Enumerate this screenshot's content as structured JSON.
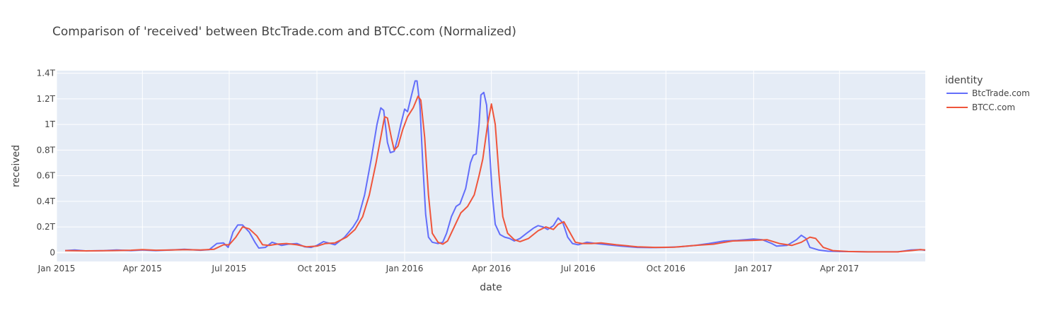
{
  "colors": {
    "plot_bg": "#E5ECF6",
    "grid": "#FFFFFF",
    "text": "#444444",
    "btctrade": "#636EFA",
    "btcc": "#EF553B"
  },
  "chart_data": {
    "type": "line",
    "title": "Comparison of 'received' between BtcTrade.com and BTCC.com (Normalized)",
    "xlabel": "date",
    "ylabel": "received",
    "xlim": [
      "2015-01-01",
      "2017-06-30"
    ],
    "ylim": [
      -70,
      1420
    ],
    "grid": true,
    "x_ticks": [
      {
        "date": "2015-01-01",
        "label": "Jan 2015"
      },
      {
        "date": "2015-04-01",
        "label": "Apr 2015"
      },
      {
        "date": "2015-07-01",
        "label": "Jul 2015"
      },
      {
        "date": "2015-10-01",
        "label": "Oct 2015"
      },
      {
        "date": "2016-01-01",
        "label": "Jan 2016"
      },
      {
        "date": "2016-04-01",
        "label": "Apr 2016"
      },
      {
        "date": "2016-07-01",
        "label": "Jul 2016"
      },
      {
        "date": "2016-10-01",
        "label": "Oct 2016"
      },
      {
        "date": "2017-01-01",
        "label": "Jan 2017"
      },
      {
        "date": "2017-04-01",
        "label": "Apr 2017"
      }
    ],
    "y_ticks": [
      {
        "value": 0,
        "label": "0"
      },
      {
        "value": 200,
        "label": "0.2T"
      },
      {
        "value": 400,
        "label": "0.4T"
      },
      {
        "value": 600,
        "label": "0.6T"
      },
      {
        "value": 800,
        "label": "0.8T"
      },
      {
        "value": 1000,
        "label": "1T"
      },
      {
        "value": 1200,
        "label": "1.2T"
      },
      {
        "value": 1400,
        "label": "1.4T"
      }
    ],
    "legend": {
      "title": "identity",
      "position": "top-right"
    },
    "series": [
      {
        "name": "BtcTrade.com",
        "color": "#636EFA",
        "points": [
          [
            "2015-01-10",
            15
          ],
          [
            "2015-01-20",
            20
          ],
          [
            "2015-02-01",
            12
          ],
          [
            "2015-02-20",
            15
          ],
          [
            "2015-03-05",
            20
          ],
          [
            "2015-03-20",
            15
          ],
          [
            "2015-04-01",
            20
          ],
          [
            "2015-04-15",
            15
          ],
          [
            "2015-05-01",
            20
          ],
          [
            "2015-05-15",
            25
          ],
          [
            "2015-06-01",
            18
          ],
          [
            "2015-06-10",
            22
          ],
          [
            "2015-06-18",
            70
          ],
          [
            "2015-06-25",
            75
          ],
          [
            "2015-06-30",
            40
          ],
          [
            "2015-07-05",
            160
          ],
          [
            "2015-07-10",
            215
          ],
          [
            "2015-07-15",
            215
          ],
          [
            "2015-07-22",
            160
          ],
          [
            "2015-07-28",
            80
          ],
          [
            "2015-08-01",
            35
          ],
          [
            "2015-08-08",
            40
          ],
          [
            "2015-08-15",
            80
          ],
          [
            "2015-08-25",
            55
          ],
          [
            "2015-09-01",
            65
          ],
          [
            "2015-09-10",
            70
          ],
          [
            "2015-09-18",
            45
          ],
          [
            "2015-09-25",
            40
          ],
          [
            "2015-10-01",
            55
          ],
          [
            "2015-10-08",
            85
          ],
          [
            "2015-10-15",
            70
          ],
          [
            "2015-10-20",
            60
          ],
          [
            "2015-10-30",
            120
          ],
          [
            "2015-11-08",
            200
          ],
          [
            "2015-11-13",
            260
          ],
          [
            "2015-11-20",
            450
          ],
          [
            "2015-11-27",
            730
          ],
          [
            "2015-12-03",
            1000
          ],
          [
            "2015-12-07",
            1130
          ],
          [
            "2015-12-10",
            1110
          ],
          [
            "2015-12-14",
            860
          ],
          [
            "2015-12-17",
            780
          ],
          [
            "2015-12-21",
            790
          ],
          [
            "2015-12-25",
            900
          ],
          [
            "2015-12-28",
            1000
          ],
          [
            "2016-01-01",
            1120
          ],
          [
            "2016-01-04",
            1100
          ],
          [
            "2016-01-08",
            1220
          ],
          [
            "2016-01-12",
            1340
          ],
          [
            "2016-01-14",
            1340
          ],
          [
            "2016-01-17",
            1150
          ],
          [
            "2016-01-20",
            700
          ],
          [
            "2016-01-23",
            300
          ],
          [
            "2016-01-26",
            120
          ],
          [
            "2016-01-30",
            80
          ],
          [
            "2016-02-05",
            70
          ],
          [
            "2016-02-10",
            80
          ],
          [
            "2016-02-14",
            150
          ],
          [
            "2016-02-19",
            280
          ],
          [
            "2016-02-24",
            360
          ],
          [
            "2016-02-28",
            380
          ],
          [
            "2016-03-05",
            500
          ],
          [
            "2016-03-10",
            700
          ],
          [
            "2016-03-13",
            760
          ],
          [
            "2016-03-16",
            770
          ],
          [
            "2016-03-19",
            1000
          ],
          [
            "2016-03-21",
            1230
          ],
          [
            "2016-03-24",
            1250
          ],
          [
            "2016-03-27",
            1150
          ],
          [
            "2016-03-30",
            800
          ],
          [
            "2016-04-02",
            450
          ],
          [
            "2016-04-05",
            220
          ],
          [
            "2016-04-10",
            140
          ],
          [
            "2016-04-15",
            120
          ],
          [
            "2016-04-20",
            110
          ],
          [
            "2016-04-25",
            90
          ],
          [
            "2016-05-01",
            110
          ],
          [
            "2016-05-08",
            150
          ],
          [
            "2016-05-15",
            190
          ],
          [
            "2016-05-20",
            210
          ],
          [
            "2016-05-25",
            200
          ],
          [
            "2016-05-30",
            180
          ],
          [
            "2016-06-05",
            210
          ],
          [
            "2016-06-10",
            270
          ],
          [
            "2016-06-15",
            230
          ],
          [
            "2016-06-20",
            120
          ],
          [
            "2016-06-25",
            70
          ],
          [
            "2016-07-01",
            60
          ],
          [
            "2016-07-10",
            80
          ],
          [
            "2016-07-20",
            70
          ],
          [
            "2016-08-01",
            60
          ],
          [
            "2016-08-15",
            50
          ],
          [
            "2016-09-01",
            40
          ],
          [
            "2016-09-15",
            38
          ],
          [
            "2016-10-01",
            40
          ],
          [
            "2016-10-15",
            45
          ],
          [
            "2016-11-01",
            55
          ],
          [
            "2016-11-15",
            70
          ],
          [
            "2016-12-01",
            90
          ],
          [
            "2016-12-15",
            95
          ],
          [
            "2017-01-01",
            105
          ],
          [
            "2017-01-10",
            100
          ],
          [
            "2017-01-20",
            70
          ],
          [
            "2017-01-25",
            50
          ],
          [
            "2017-02-05",
            55
          ],
          [
            "2017-02-15",
            100
          ],
          [
            "2017-02-20",
            135
          ],
          [
            "2017-02-25",
            110
          ],
          [
            "2017-03-01",
            40
          ],
          [
            "2017-03-10",
            20
          ],
          [
            "2017-03-20",
            10
          ],
          [
            "2017-04-01",
            8
          ],
          [
            "2017-05-01",
            5
          ],
          [
            "2017-06-01",
            5
          ],
          [
            "2017-06-15",
            20
          ],
          [
            "2017-06-25",
            22
          ],
          [
            "2017-06-30",
            18
          ]
        ]
      },
      {
        "name": "BTCC.com",
        "color": "#EF553B",
        "points": [
          [
            "2015-01-10",
            15
          ],
          [
            "2015-02-01",
            13
          ],
          [
            "2015-03-01",
            15
          ],
          [
            "2015-03-20",
            18
          ],
          [
            "2015-04-01",
            22
          ],
          [
            "2015-04-15",
            18
          ],
          [
            "2015-05-01",
            20
          ],
          [
            "2015-05-15",
            22
          ],
          [
            "2015-06-01",
            20
          ],
          [
            "2015-06-15",
            25
          ],
          [
            "2015-06-25",
            60
          ],
          [
            "2015-07-01",
            60
          ],
          [
            "2015-07-08",
            120
          ],
          [
            "2015-07-15",
            200
          ],
          [
            "2015-07-22",
            185
          ],
          [
            "2015-07-30",
            130
          ],
          [
            "2015-08-05",
            60
          ],
          [
            "2015-08-12",
            55
          ],
          [
            "2015-08-20",
            65
          ],
          [
            "2015-08-30",
            70
          ],
          [
            "2015-09-10",
            60
          ],
          [
            "2015-09-20",
            45
          ],
          [
            "2015-10-01",
            50
          ],
          [
            "2015-10-10",
            70
          ],
          [
            "2015-10-20",
            75
          ],
          [
            "2015-11-01",
            120
          ],
          [
            "2015-11-10",
            180
          ],
          [
            "2015-11-18",
            280
          ],
          [
            "2015-11-25",
            450
          ],
          [
            "2015-12-02",
            700
          ],
          [
            "2015-12-07",
            900
          ],
          [
            "2015-12-11",
            1060
          ],
          [
            "2015-12-14",
            1050
          ],
          [
            "2015-12-18",
            900
          ],
          [
            "2015-12-21",
            800
          ],
          [
            "2015-12-25",
            830
          ],
          [
            "2015-12-30",
            960
          ],
          [
            "2016-01-04",
            1060
          ],
          [
            "2016-01-10",
            1130
          ],
          [
            "2016-01-15",
            1220
          ],
          [
            "2016-01-18",
            1190
          ],
          [
            "2016-01-22",
            900
          ],
          [
            "2016-01-26",
            450
          ],
          [
            "2016-01-30",
            150
          ],
          [
            "2016-02-05",
            80
          ],
          [
            "2016-02-10",
            65
          ],
          [
            "2016-02-15",
            90
          ],
          [
            "2016-02-22",
            200
          ],
          [
            "2016-02-29",
            310
          ],
          [
            "2016-03-07",
            360
          ],
          [
            "2016-03-14",
            450
          ],
          [
            "2016-03-19",
            600
          ],
          [
            "2016-03-23",
            730
          ],
          [
            "2016-03-28",
            1000
          ],
          [
            "2016-04-01",
            1160
          ],
          [
            "2016-04-05",
            1000
          ],
          [
            "2016-04-09",
            600
          ],
          [
            "2016-04-13",
            280
          ],
          [
            "2016-04-18",
            150
          ],
          [
            "2016-04-25",
            100
          ],
          [
            "2016-05-01",
            85
          ],
          [
            "2016-05-10",
            110
          ],
          [
            "2016-05-20",
            170
          ],
          [
            "2016-05-28",
            200
          ],
          [
            "2016-06-05",
            180
          ],
          [
            "2016-06-10",
            220
          ],
          [
            "2016-06-16",
            240
          ],
          [
            "2016-06-22",
            160
          ],
          [
            "2016-06-28",
            80
          ],
          [
            "2016-07-05",
            70
          ],
          [
            "2016-07-15",
            70
          ],
          [
            "2016-07-25",
            75
          ],
          [
            "2016-08-10",
            60
          ],
          [
            "2016-09-01",
            45
          ],
          [
            "2016-09-20",
            40
          ],
          [
            "2016-10-10",
            42
          ],
          [
            "2016-11-01",
            55
          ],
          [
            "2016-11-20",
            65
          ],
          [
            "2016-12-10",
            90
          ],
          [
            "2017-01-01",
            95
          ],
          [
            "2017-01-15",
            100
          ],
          [
            "2017-01-28",
            70
          ],
          [
            "2017-02-10",
            55
          ],
          [
            "2017-02-20",
            80
          ],
          [
            "2017-03-01",
            120
          ],
          [
            "2017-03-07",
            110
          ],
          [
            "2017-03-15",
            40
          ],
          [
            "2017-03-25",
            15
          ],
          [
            "2017-04-10",
            8
          ],
          [
            "2017-05-01",
            5
          ],
          [
            "2017-06-01",
            5
          ],
          [
            "2017-06-15",
            15
          ],
          [
            "2017-06-25",
            22
          ],
          [
            "2017-06-30",
            20
          ]
        ]
      }
    ]
  }
}
